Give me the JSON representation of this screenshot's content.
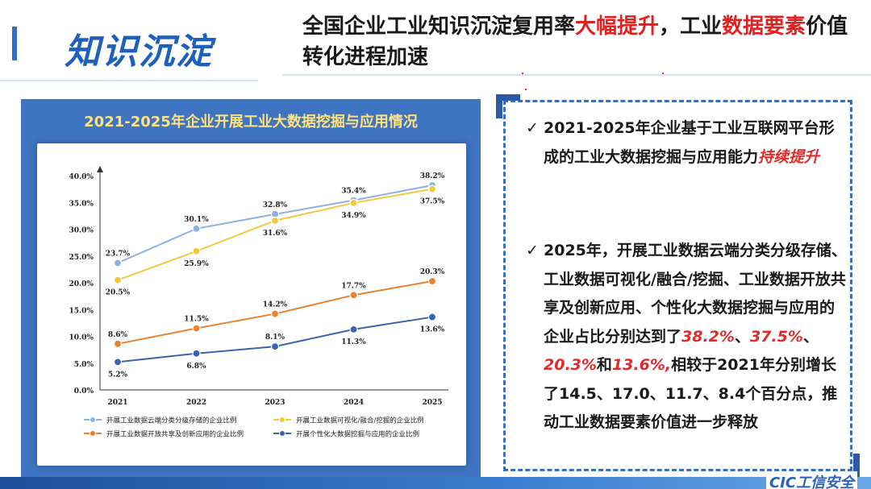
{
  "section_title": "知识沉淀",
  "headline": {
    "parts": [
      {
        "text": "全国企业工业知识沉淀复用率",
        "highlight": false
      },
      {
        "text": "大幅提升",
        "highlight": true
      },
      {
        "text": "，工业",
        "highlight": false
      },
      {
        "text": "数据要素",
        "highlight": true
      },
      {
        "text": "价值转化进程加速",
        "highlight": false
      }
    ]
  },
  "chart_data": {
    "type": "line",
    "title": "2021-2025年企业开展工业大数据挖掘与应用情况",
    "x": [
      "2021",
      "2022",
      "2023",
      "2024",
      "2025"
    ],
    "ylim": [
      0,
      40
    ],
    "yticks": [
      "0.0%",
      "5.0%",
      "10.0%",
      "15.0%",
      "20.0%",
      "25.0%",
      "30.0%",
      "35.0%",
      "40.0%"
    ],
    "grid": false,
    "legend_position": "bottom",
    "series": [
      {
        "name": "开展工业数据云端分类分级存储的企业比例",
        "values": [
          23.7,
          30.1,
          32.8,
          35.4,
          38.2
        ],
        "labels": [
          "23.7%",
          "30.1%",
          "32.8%",
          "35.4%",
          "38.2%"
        ],
        "color": "#8fb0e3",
        "label_pos": [
          "above",
          "above",
          "above",
          "above",
          "above"
        ]
      },
      {
        "name": "开展工业数据可视化/融合/挖掘的企业比例",
        "values": [
          20.5,
          25.9,
          31.6,
          34.9,
          37.5
        ],
        "labels": [
          "20.5%",
          "25.9%",
          "31.6%",
          "34.9%",
          "37.5%"
        ],
        "color": "#f3c93d",
        "label_pos": [
          "below",
          "below",
          "below",
          "below",
          "below"
        ]
      },
      {
        "name": "开展工业数据开放共享及创新应用的企业比例",
        "values": [
          8.6,
          11.5,
          14.2,
          17.7,
          20.3
        ],
        "labels": [
          "8.6%",
          "11.5%",
          "14.2%",
          "17.7%",
          "20.3%"
        ],
        "color": "#e8822e",
        "label_pos": [
          "above",
          "above",
          "above",
          "above",
          "above"
        ]
      },
      {
        "name": "开展个性化大数据挖掘与应用的企业比例",
        "values": [
          5.2,
          6.8,
          8.1,
          11.3,
          13.6
        ],
        "labels": [
          "5.2%",
          "6.8%",
          "8.1%",
          "11.3%",
          "13.6%"
        ],
        "color": "#3d63b0",
        "label_pos": [
          "below",
          "below",
          "above",
          "below",
          "below"
        ]
      }
    ]
  },
  "bullets": [
    {
      "check": "✓",
      "parts": [
        {
          "text": "2021-2025年企业基于工业互联网平台形成的工业大数据挖掘与应用能力",
          "style": "normal"
        },
        {
          "text": "持续提升",
          "style": "red"
        }
      ]
    },
    {
      "check": "✓",
      "parts": [
        {
          "text": "2025年，开展工业数据云端分类分级存储、工业数据可视化/融合/挖掘、工业数据开放共享及创新应用、个性化大数据挖掘与应用的企业占比分别达到了",
          "style": "normal"
        },
        {
          "text": "38.2%",
          "style": "red"
        },
        {
          "text": "、",
          "style": "normal"
        },
        {
          "text": "37.5%",
          "style": "red"
        },
        {
          "text": "、",
          "style": "normal"
        },
        {
          "text": "20.3%",
          "style": "red"
        },
        {
          "text": "和",
          "style": "normal"
        },
        {
          "text": "13.6%,",
          "style": "red"
        },
        {
          "text": "相较于2021年分别增长了14.5、17.0、11.7、8.4个百分点，推动工业数据要素价值进一步释放",
          "style": "normal"
        }
      ]
    }
  ],
  "logo_text": "CIC工信安全",
  "colors": {
    "accent": "#1f5fbf",
    "highlight": "#e31f1f",
    "panel": "#3e74c2",
    "chart_title": "#ffe27a"
  }
}
